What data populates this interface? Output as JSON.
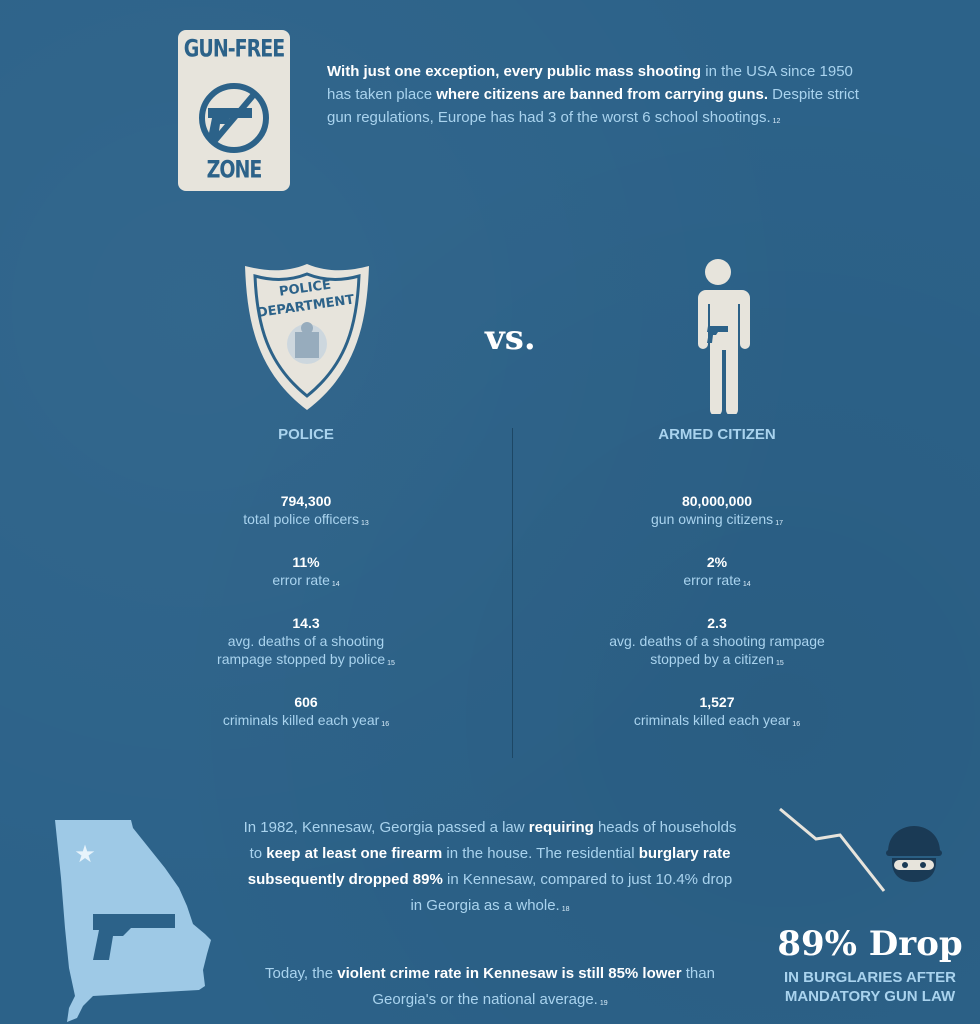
{
  "sign": {
    "top": "GUN-FREE",
    "bottom": "ZONE"
  },
  "intro": {
    "p1": "With just one exception, every public mass shooting",
    "p2": " in the USA since 1950 has taken place ",
    "p3": "where citizens are banned from carrying guns.",
    "p4": " Despite strict gun regulations, Europe has had 3 of the worst 6 school shootings.",
    "fn": "12"
  },
  "badge": {
    "line1": "POLICE",
    "line2": "DEPARTMENT"
  },
  "vs": "vs.",
  "police": {
    "title": "POLICE",
    "stats": [
      {
        "value": "794,300",
        "label": "total police officers",
        "fn": "13"
      },
      {
        "value": "11%",
        "label": "error rate",
        "fn": "14"
      },
      {
        "value": "14.3",
        "label": "avg. deaths of a shooting rampage stopped by police",
        "fn": "15"
      },
      {
        "value": "606",
        "label": "criminals killed each year",
        "fn": "16"
      }
    ]
  },
  "citizen": {
    "title": "ARMED CITIZEN",
    "stats": [
      {
        "value": "80,000,000",
        "label": "gun owning citizens",
        "fn": "17"
      },
      {
        "value": "2%",
        "label": "error rate",
        "fn": "14"
      },
      {
        "value": "2.3",
        "label": "avg. deaths of a shooting rampage stopped by a citizen",
        "fn": "15"
      },
      {
        "value": "1,527",
        "label": "criminals killed each year",
        "fn": "16"
      }
    ]
  },
  "kennesaw": {
    "a1": "In 1982, Kennesaw, Georgia passed a law ",
    "a2": "requiring",
    "a3": " heads of households to ",
    "a4": "keep at least one firearm",
    "a5": " in the house. The residential ",
    "a6": "burglary rate subsequently dropped 89%",
    "a7": " in Kennesaw, compared to just 10.4% drop in Georgia as a whole.",
    "fn1": "18",
    "b1": "Today, the ",
    "b2": "violent crime rate in Kennesaw is still 85% lower",
    "b3": " than Georgia's or the national average.",
    "fn2": "19"
  },
  "drop": {
    "big": "89% Drop",
    "sub1": "IN BURGLARIES AFTER",
    "sub2": "MANDATORY GUN LAW"
  },
  "colors": {
    "background": "#2c6289",
    "accent": "#a9d3ee",
    "sign": "#e7e4dc"
  }
}
